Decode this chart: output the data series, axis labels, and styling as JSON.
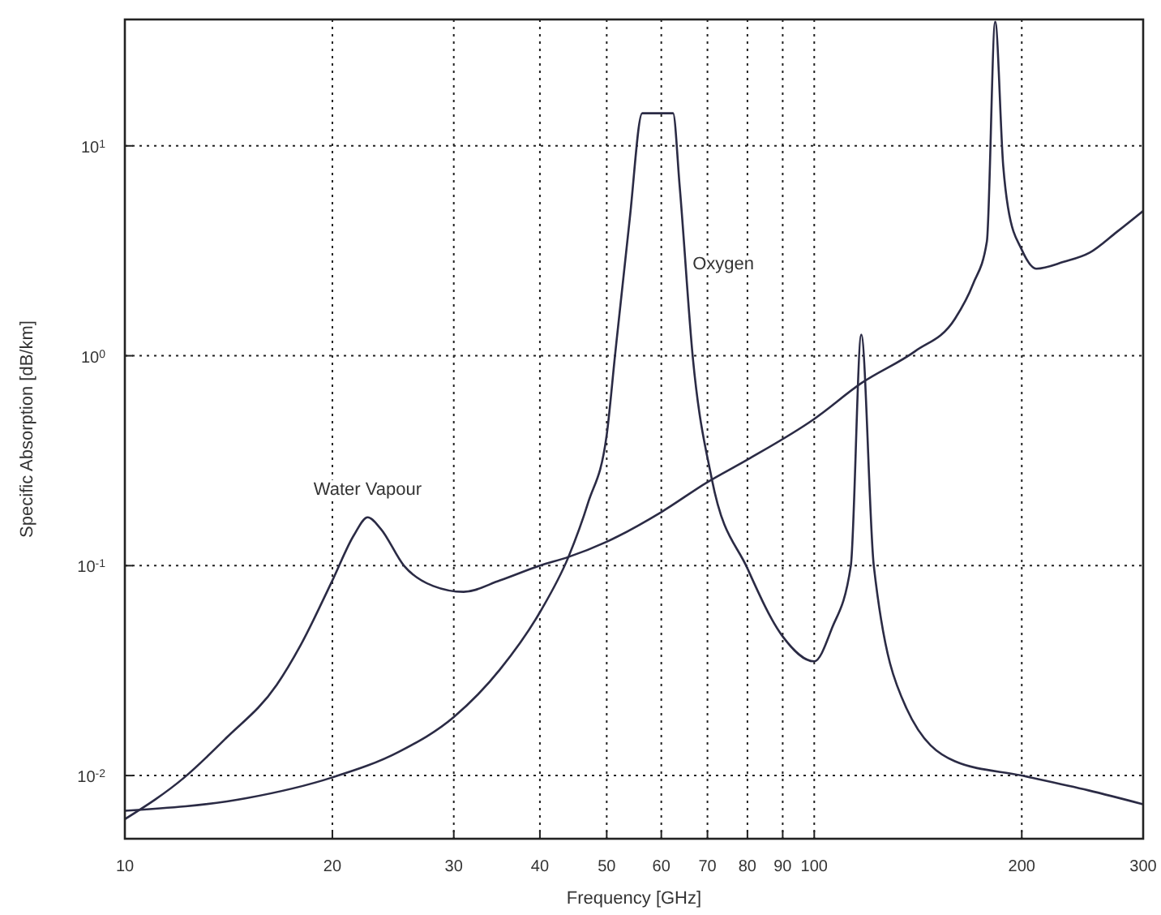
{
  "chart_data": {
    "type": "line",
    "xlabel": "Frequency [GHz]",
    "ylabel": "Specific Absorption [dB/km]",
    "log": "xy",
    "xlim": [
      10,
      300
    ],
    "ylim": [
      0.005,
      40
    ],
    "xticks": [
      10,
      20,
      30,
      40,
      50,
      60,
      70,
      80,
      90,
      100,
      200,
      300
    ],
    "yticks": [
      {
        "value": 0.01,
        "label": "10$^{-2}$"
      },
      {
        "value": 0.1,
        "label": "10$^{-1}$"
      },
      {
        "value": 1,
        "label": "10$^{0}$"
      },
      {
        "value": 10,
        "label": "10$^{1}$"
      }
    ],
    "grid": true,
    "marker": "none",
    "line_style": "solid",
    "series": [
      {
        "name": "Water Vapour",
        "color": "#2b2b45",
        "x": [
          10,
          12.2,
          14,
          16.6,
          18,
          20,
          21.5,
          22.5,
          23.5,
          25.4,
          28,
          31,
          35,
          40,
          44,
          50,
          60,
          70,
          80,
          100,
          117,
          140,
          160,
          170,
          178,
          183,
          188,
          191,
          200,
          210,
          230,
          251,
          275,
          300
        ],
        "values": [
          0.0062,
          0.0098,
          0.015,
          0.027,
          0.042,
          0.085,
          0.14,
          0.17,
          0.15,
          0.1,
          0.08,
          0.075,
          0.085,
          0.1,
          0.11,
          0.13,
          0.18,
          0.25,
          0.32,
          0.5,
          0.74,
          1.05,
          1.5,
          2.2,
          3.5,
          39,
          8,
          5.1,
          3.2,
          2.6,
          2.8,
          3.1,
          3.9,
          4.9
        ]
      },
      {
        "name": "Oxygen",
        "color": "#2b2b45",
        "x": [
          10,
          15,
          20,
          25,
          30,
          35,
          40,
          44,
          47,
          50,
          51.4,
          54,
          56.3,
          62.4,
          63.8,
          66.7,
          71,
          80,
          90,
          100,
          106,
          113,
          117,
          122,
          136,
          160,
          200,
          250,
          300
        ],
        "values": [
          0.0068,
          0.0078,
          0.0098,
          0.013,
          0.019,
          0.032,
          0.06,
          0.11,
          0.2,
          0.42,
          1,
          4.5,
          14.3,
          14.3,
          6.4,
          0.96,
          0.26,
          0.097,
          0.046,
          0.035,
          0.05,
          0.1,
          1.26,
          0.1,
          0.021,
          0.0117,
          0.01,
          0.0085,
          0.0073
        ]
      }
    ]
  }
}
